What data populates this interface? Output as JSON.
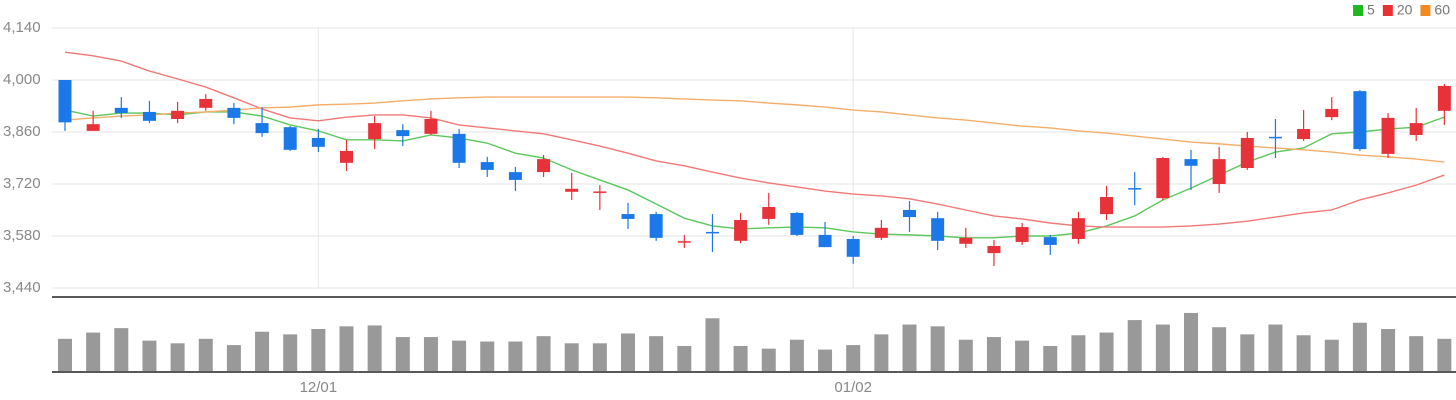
{
  "chart_data": {
    "type": "candlestick",
    "categories": [
      null,
      null,
      null,
      null,
      null,
      null,
      null,
      null,
      null,
      "12/01",
      null,
      null,
      null,
      null,
      null,
      null,
      null,
      null,
      null,
      null,
      null,
      null,
      null,
      null,
      null,
      null,
      null,
      null,
      "01/02",
      null,
      null,
      null,
      null,
      null,
      null,
      null,
      null,
      null,
      null,
      null,
      null,
      null,
      null,
      null,
      null,
      null,
      null,
      null,
      null,
      null
    ],
    "open": [
      4000,
      3863,
      3925,
      3914,
      3895,
      3925,
      3925,
      3884,
      3873,
      3844,
      3777,
      3841,
      3865,
      3855,
      3855,
      3779,
      3752,
      3752,
      3699,
      3698,
      3639,
      3639,
      3564,
      3591,
      3567,
      3626,
      3642,
      3583,
      3572,
      3575,
      3650,
      3628,
      3559,
      3534,
      3564,
      3577,
      3572,
      3639,
      3709,
      3682,
      3787,
      3720,
      3763,
      3847,
      3841,
      3900,
      3970,
      3801,
      3852,
      3917
    ],
    "high": [
      4000,
      3917,
      3954,
      3944,
      3941,
      3962,
      3938,
      3927,
      3876,
      3868,
      3839,
      3903,
      3881,
      3917,
      3868,
      3793,
      3766,
      3798,
      3750,
      3717,
      3669,
      3645,
      3583,
      3639,
      3642,
      3696,
      3645,
      3618,
      3580,
      3623,
      3674,
      3645,
      3602,
      3569,
      3615,
      3583,
      3645,
      3715,
      3752,
      3793,
      3812,
      3820,
      3860,
      3895,
      3919,
      3954,
      3973,
      3911,
      3925,
      3989
    ],
    "low": [
      3863,
      3863,
      3898,
      3884,
      3884,
      3917,
      3881,
      3847,
      3809,
      3806,
      3755,
      3814,
      3822,
      3852,
      3763,
      3739,
      3701,
      3739,
      3677,
      3650,
      3599,
      3567,
      3548,
      3537,
      3561,
      3610,
      3580,
      3550,
      3505,
      3569,
      3591,
      3542,
      3548,
      3499,
      3556,
      3529,
      3559,
      3623,
      3663,
      3677,
      3704,
      3696,
      3758,
      3790,
      3836,
      3892,
      3809,
      3790,
      3836,
      3879
    ],
    "close": [
      3886,
      3881,
      3911,
      3890,
      3917,
      3949,
      3898,
      3857,
      3812,
      3820,
      3809,
      3884,
      3849,
      3895,
      3777,
      3758,
      3731,
      3787,
      3707,
      3700,
      3626,
      3575,
      3566,
      3589,
      3623,
      3658,
      3583,
      3550,
      3524,
      3602,
      3631,
      3567,
      3575,
      3553,
      3604,
      3556,
      3628,
      3685,
      3707,
      3790,
      3769,
      3787,
      3844,
      3844,
      3868,
      3922,
      3814,
      3898,
      3884,
      3984
    ],
    "up_color": "#e8323a",
    "down_color": "#1b78e8",
    "series": [
      {
        "name": "5",
        "color": "#5cc85c",
        "legend_color": "#1fb81f",
        "values": [
          3919,
          3903,
          3911,
          3911,
          3906,
          3914,
          3914,
          3903,
          3879,
          3863,
          3839,
          3839,
          3836,
          3852,
          3844,
          3830,
          3803,
          3790,
          3758,
          3731,
          3704,
          3666,
          3628,
          3607,
          3599,
          3602,
          3604,
          3602,
          3591,
          3585,
          3583,
          3580,
          3575,
          3575,
          3580,
          3580,
          3588,
          3607,
          3634,
          3677,
          3709,
          3744,
          3779,
          3806,
          3817,
          3855,
          3860,
          3868,
          3873,
          3900
        ]
      },
      {
        "name": "20",
        "color": "#f27878",
        "legend_color": "#e83232",
        "values": [
          4075,
          4065,
          4051,
          4024,
          4003,
          3981,
          3952,
          3922,
          3898,
          3890,
          3900,
          3906,
          3906,
          3898,
          3879,
          3871,
          3863,
          3855,
          3839,
          3822,
          3803,
          3782,
          3769,
          3752,
          3736,
          3723,
          3712,
          3701,
          3693,
          3688,
          3680,
          3666,
          3650,
          3634,
          3626,
          3615,
          3607,
          3604,
          3604,
          3604,
          3607,
          3612,
          3620,
          3631,
          3642,
          3650,
          3677,
          3696,
          3717,
          3744
        ]
      },
      {
        "name": "60",
        "color": "#f5ae6a",
        "legend_color": "#f08a22",
        "values": [
          3892,
          3898,
          3903,
          3906,
          3911,
          3914,
          3919,
          3925,
          3927,
          3933,
          3935,
          3938,
          3944,
          3949,
          3952,
          3954,
          3954,
          3954,
          3954,
          3954,
          3954,
          3952,
          3949,
          3946,
          3944,
          3938,
          3933,
          3927,
          3919,
          3914,
          3906,
          3898,
          3892,
          3884,
          3876,
          3871,
          3863,
          3857,
          3849,
          3841,
          3833,
          3828,
          3822,
          3817,
          3812,
          3806,
          3798,
          3793,
          3787,
          3779
        ]
      }
    ],
    "volume": {
      "color": "#999999",
      "ylim": [
        0,
        75
      ],
      "values": [
        36,
        43,
        48,
        34,
        31,
        36,
        29,
        44,
        41,
        47,
        50,
        51,
        38,
        38,
        34,
        33,
        33,
        39,
        31,
        31,
        42,
        39,
        28,
        59,
        28,
        25,
        35,
        24,
        29,
        41,
        52,
        50,
        35,
        38,
        34,
        28,
        40,
        43,
        57,
        52,
        65,
        49,
        41,
        52,
        40,
        35,
        54,
        47,
        39,
        36
      ]
    },
    "ylim": [
      3440,
      4140
    ],
    "yticks": [
      {
        "value": 3440,
        "label": "3,440"
      },
      {
        "value": 3580,
        "label": "3,580"
      },
      {
        "value": 3720,
        "label": "3,720"
      },
      {
        "value": 3860,
        "label": "3,860"
      },
      {
        "value": 4000,
        "label": "4,000"
      },
      {
        "value": 4140,
        "label": "4,140"
      }
    ],
    "grid": true,
    "legend": "top-right"
  }
}
